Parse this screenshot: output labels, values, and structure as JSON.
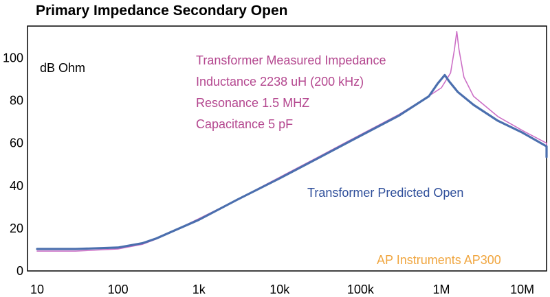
{
  "chart_data": {
    "type": "line",
    "title": "Primary Impedance Secondary Open",
    "ylabel": "dB Ohm",
    "xlabel": "",
    "x_scale": "log",
    "xlim": [
      10,
      30000000
    ],
    "ylim": [
      0,
      115
    ],
    "x_ticks": [
      {
        "value": 10,
        "label": "10"
      },
      {
        "value": 100,
        "label": "100"
      },
      {
        "value": 1000,
        "label": "1k"
      },
      {
        "value": 10000,
        "label": "10k"
      },
      {
        "value": 100000,
        "label": "100k"
      },
      {
        "value": 1000000,
        "label": "1M"
      },
      {
        "value": 10000000,
        "label": "10M"
      }
    ],
    "y_ticks": [
      {
        "value": 0,
        "label": "0"
      },
      {
        "value": 20,
        "label": "20"
      },
      {
        "value": 40,
        "label": "40"
      },
      {
        "value": 60,
        "label": "60"
      },
      {
        "value": 80,
        "label": "80"
      },
      {
        "value": 100,
        "label": "100"
      }
    ],
    "grid": false,
    "series": [
      {
        "name": "Transformer Measured Impedance",
        "color": "#cc6fc6",
        "points": [
          [
            10,
            9.3
          ],
          [
            30,
            9.3
          ],
          [
            100,
            10.3
          ],
          [
            200,
            12.5
          ],
          [
            300,
            15
          ],
          [
            500,
            19
          ],
          [
            1000,
            24.5
          ],
          [
            3000,
            33.5
          ],
          [
            10000,
            44
          ],
          [
            30000,
            53.5
          ],
          [
            100000,
            64
          ],
          [
            300000,
            73.5
          ],
          [
            600000,
            80.5
          ],
          [
            1000000,
            86
          ],
          [
            1300000,
            93
          ],
          [
            1450000,
            104
          ],
          [
            1550000,
            112.5
          ],
          [
            1650000,
            104
          ],
          [
            1900000,
            91
          ],
          [
            2500000,
            82
          ],
          [
            5000000,
            72.5
          ],
          [
            10000000,
            66
          ],
          [
            20000000,
            60
          ],
          [
            30000000,
            56
          ]
        ]
      },
      {
        "name": "Transformer Predicted Open",
        "color": "#4b6fae",
        "points": [
          [
            10,
            10.3
          ],
          [
            30,
            10.3
          ],
          [
            100,
            11
          ],
          [
            200,
            13
          ],
          [
            300,
            15.3
          ],
          [
            500,
            19
          ],
          [
            1000,
            24
          ],
          [
            3000,
            33.5
          ],
          [
            10000,
            43.5
          ],
          [
            30000,
            53
          ],
          [
            100000,
            63.5
          ],
          [
            300000,
            73
          ],
          [
            700000,
            82
          ],
          [
            900000,
            88
          ],
          [
            1100000,
            92
          ],
          [
            1250000,
            89
          ],
          [
            1600000,
            84
          ],
          [
            2500000,
            78
          ],
          [
            5000000,
            70.5
          ],
          [
            10000000,
            65
          ],
          [
            20000000,
            58.5
          ],
          [
            30000000,
            53.5
          ]
        ]
      }
    ],
    "annotations": [
      {
        "text": "Transformer Measured Impedance",
        "color": "#b4478f"
      },
      {
        "text": "Inductance 2238 uH (200 kHz)",
        "color": "#b4478f"
      },
      {
        "text": "Resonance 1.5 MHZ",
        "color": "#b4478f"
      },
      {
        "text": "Capacitance 5 pF",
        "color": "#b4478f"
      },
      {
        "text": "Transformer Predicted Open",
        "color": "#2e4e9a"
      },
      {
        "text": "AP Instruments AP300",
        "color": "#f0a640"
      }
    ]
  }
}
